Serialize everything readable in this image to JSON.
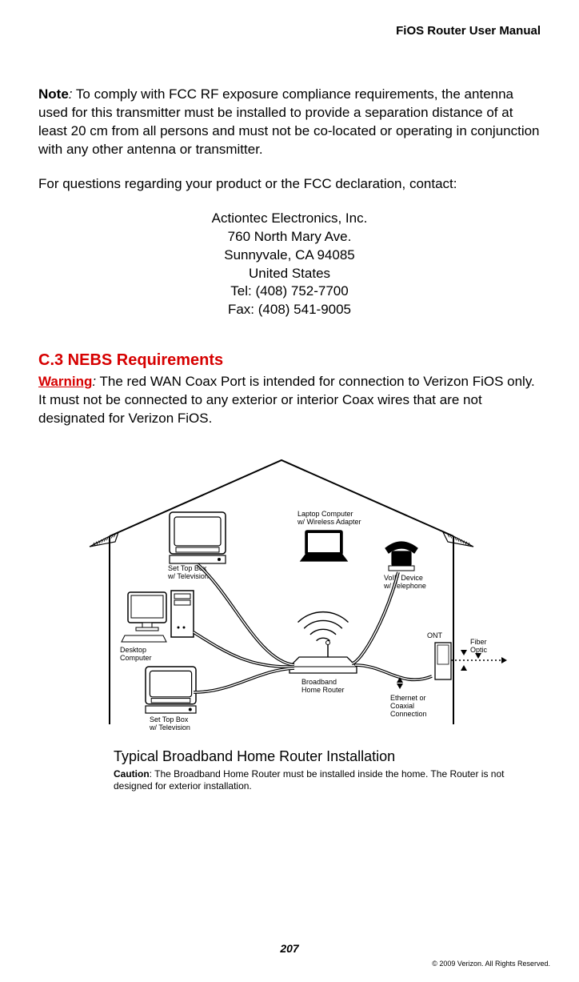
{
  "header": {
    "title": "FiOS Router User Manual"
  },
  "note": {
    "label": "Note",
    "colon": ":",
    "text": " To comply with FCC RF exposure compliance requirements, the antenna used for this transmitter must be installed to provide a separation distance of at least 20 cm from all persons and must not be co-located or operating in conjunction with any other antenna or transmitter."
  },
  "questions_line": "For questions regarding your product or the FCC declaration, contact:",
  "address": {
    "line1": "Actiontec Electronics, Inc.",
    "line2": "760 North Mary Ave.",
    "line3": "Sunnyvale, CA 94085",
    "line4": "United States",
    "line5": "Tel: (408) 752-7700",
    "line6": "Fax: (408) 541-9005"
  },
  "section": {
    "number_title": "C.3  NEBS Requirements",
    "warning_label": "Warning",
    "warning_colon": ":",
    "warning_text": " The red WAN Coax Port is intended for connection to Verizon FiOS only. It must not be connected to any exterior or interior Coax wires that are not designated for Verizon FiOS."
  },
  "diagram": {
    "type": "network",
    "house_stroke": "#000000",
    "house_stroke_width": 2,
    "labels": {
      "laptop": "Laptop Computer\nw/ Wireless Adapter",
      "stb_top": "Set Top Box\nw/ Television",
      "stb_bottom": "Set Top Box\nw/ Television",
      "desktop": "Desktop\nComputer",
      "voip": "VoIP Device\nw/ Telephone",
      "router": "Broadband\nHome Router",
      "ont": "ONT",
      "fiber": "Fiber\nOptic",
      "ethcoax": "Ethernet or\nCoaxial\nConnection"
    },
    "label_fontsize": 9
  },
  "caption": {
    "title": "Typical Broadband Home Router Installation",
    "caution_label": "Caution",
    "caution_text": ": The Broadband Home Router must be installed inside the home. The Router is not designed for exterior installation."
  },
  "page_number": "207",
  "copyright": "© 2009 Verizon. All Rights Reserved."
}
